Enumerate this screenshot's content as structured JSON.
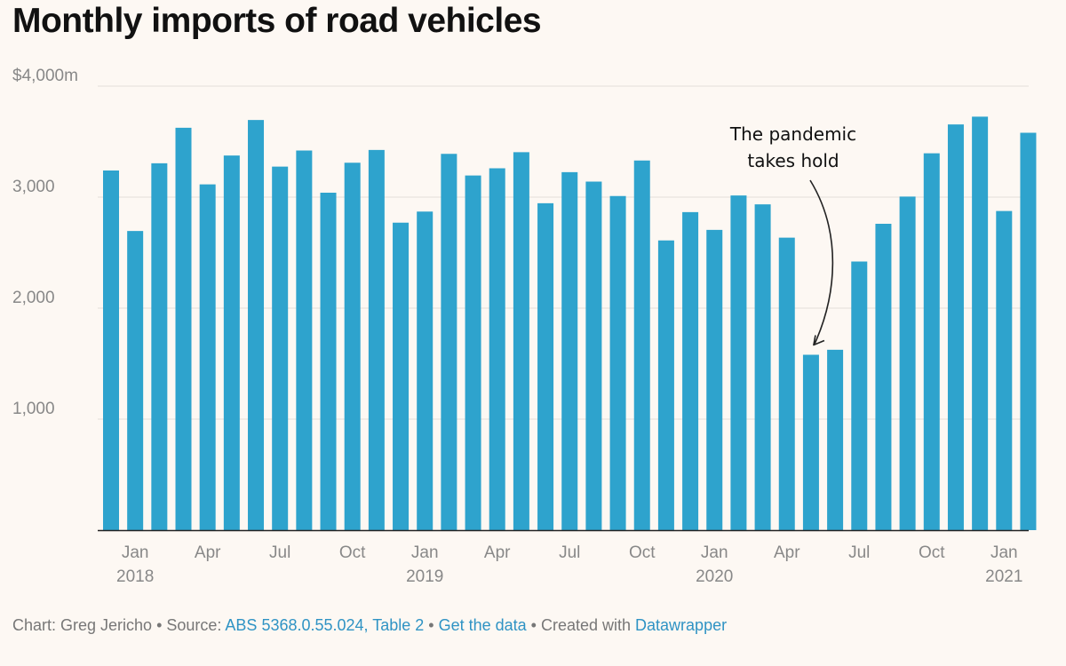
{
  "title": "Monthly imports of road vehicles",
  "footer": {
    "chart_by": "Chart: Greg Jericho",
    "sep1": " • Source: ",
    "source_link": "ABS 5368.0.55.024, Table 2",
    "sep2": " • ",
    "data_link": "Get the data",
    "sep3": " • Created with ",
    "tool_link": "Datawrapper"
  },
  "colors": {
    "bar": "#2ea3cd",
    "link": "#2f93c4",
    "background": "#fdf8f3"
  },
  "chart_data": {
    "type": "bar",
    "title": "Monthly imports of road vehicles",
    "xlabel": "",
    "ylabel": "",
    "unit_prefix": "$",
    "unit_suffix": "m",
    "ylim": [
      0,
      4000
    ],
    "grid": true,
    "y_ticks": [
      {
        "value": 4000,
        "label": "$4,000m"
      },
      {
        "value": 3000,
        "label": "3,000"
      },
      {
        "value": 2000,
        "label": "2,000"
      },
      {
        "value": 1000,
        "label": "1,000"
      }
    ],
    "x_ticks": [
      {
        "index": 1,
        "label": "Jan",
        "year": "2018"
      },
      {
        "index": 4,
        "label": "Apr",
        "year": ""
      },
      {
        "index": 7,
        "label": "Jul",
        "year": ""
      },
      {
        "index": 10,
        "label": "Oct",
        "year": ""
      },
      {
        "index": 13,
        "label": "Jan",
        "year": "2019"
      },
      {
        "index": 16,
        "label": "Apr",
        "year": ""
      },
      {
        "index": 19,
        "label": "Jul",
        "year": ""
      },
      {
        "index": 22,
        "label": "Oct",
        "year": ""
      },
      {
        "index": 25,
        "label": "Jan",
        "year": "2020"
      },
      {
        "index": 28,
        "label": "Apr",
        "year": ""
      },
      {
        "index": 31,
        "label": "Jul",
        "year": ""
      },
      {
        "index": 34,
        "label": "Oct",
        "year": ""
      },
      {
        "index": 37,
        "label": "Jan",
        "year": "2021"
      }
    ],
    "categories": [
      "Dec 2017",
      "Jan 2018",
      "Feb 2018",
      "Mar 2018",
      "Apr 2018",
      "May 2018",
      "Jun 2018",
      "Jul 2018",
      "Aug 2018",
      "Sep 2018",
      "Oct 2018",
      "Nov 2018",
      "Dec 2018",
      "Jan 2019",
      "Feb 2019",
      "Mar 2019",
      "Apr 2019",
      "May 2019",
      "Jun 2019",
      "Jul 2019",
      "Aug 2019",
      "Sep 2019",
      "Oct 2019",
      "Nov 2019",
      "Dec 2019",
      "Jan 2020",
      "Feb 2020",
      "Mar 2020",
      "Apr 2020",
      "May 2020",
      "Jun 2020",
      "Jul 2020",
      "Aug 2020",
      "Sep 2020",
      "Oct 2020",
      "Nov 2020",
      "Dec 2020",
      "Jan 2021",
      "Feb 2021"
    ],
    "values": [
      3240,
      2695,
      3305,
      3625,
      3115,
      3375,
      3695,
      3275,
      3420,
      3040,
      3310,
      3425,
      2770,
      2870,
      3390,
      3195,
      3260,
      3405,
      2945,
      3225,
      3140,
      3010,
      3330,
      2610,
      2865,
      2705,
      3015,
      2935,
      2635,
      1580,
      1625,
      2420,
      2760,
      3005,
      3395,
      3655,
      3725,
      2875,
      3580
    ],
    "annotations": [
      {
        "text_lines": [
          "The pandemic",
          "takes hold"
        ],
        "target_index": 29
      }
    ]
  }
}
